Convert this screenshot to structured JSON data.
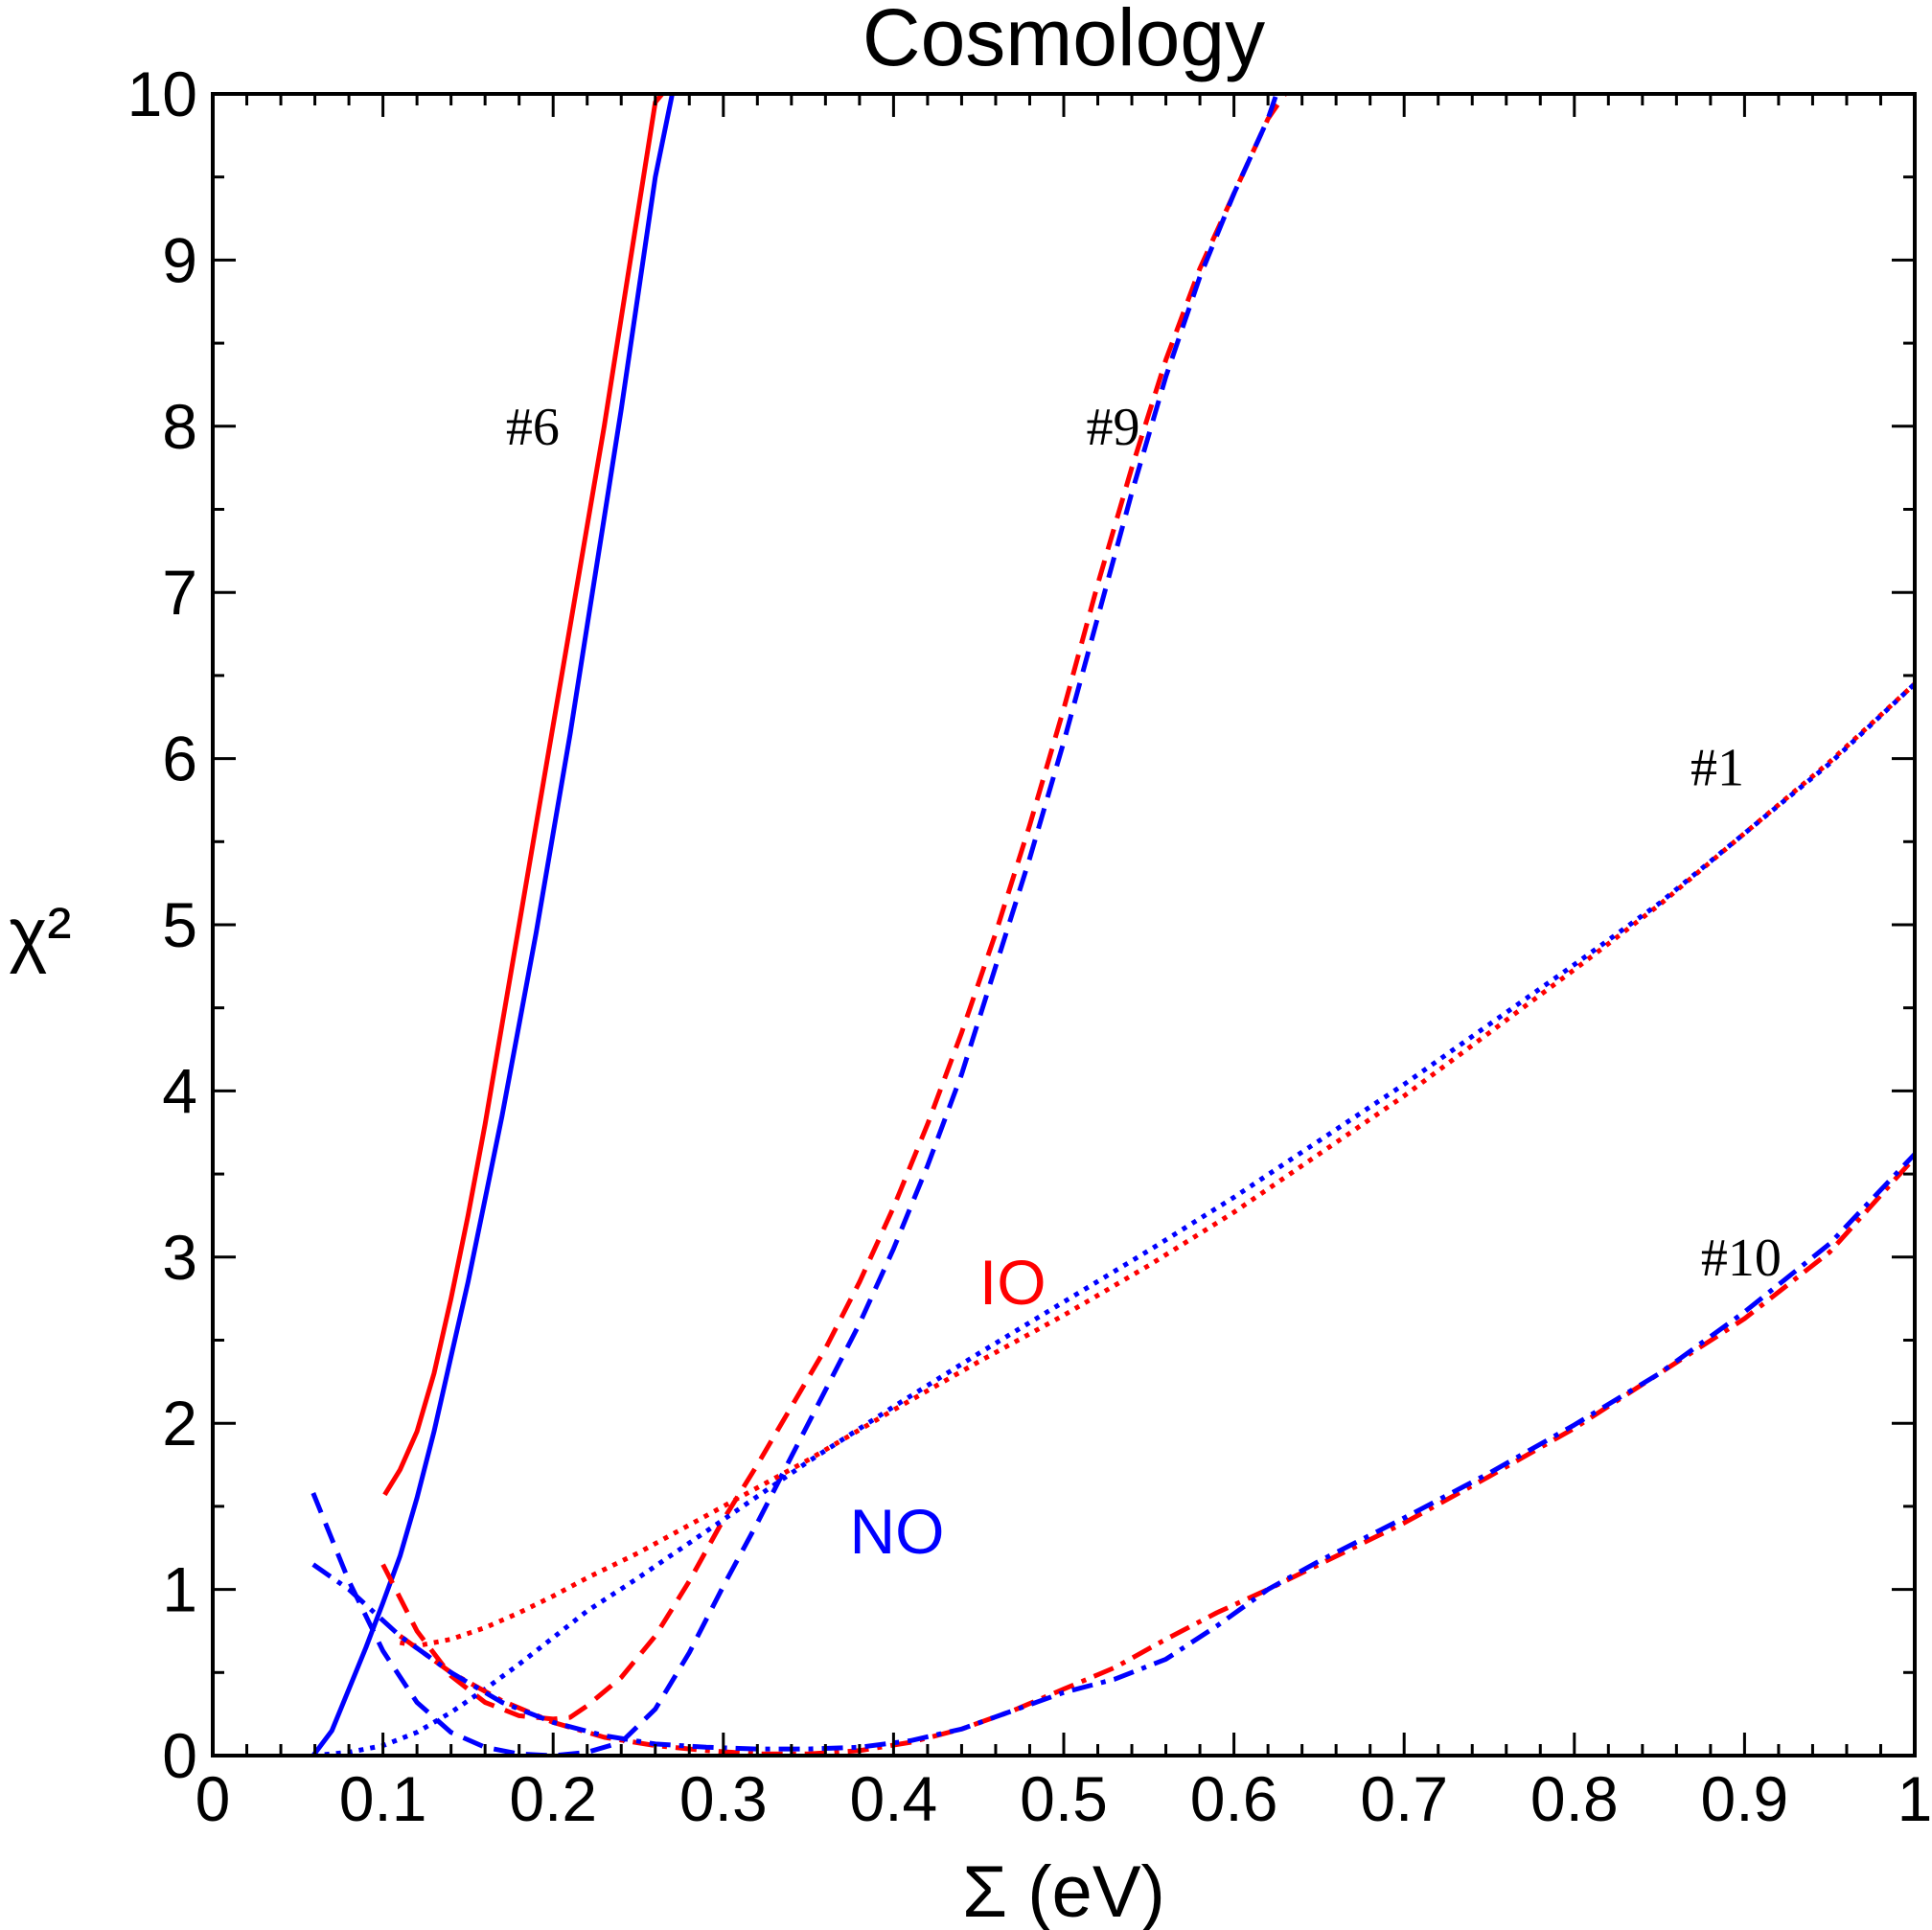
{
  "chart_data": {
    "type": "line",
    "title": "Cosmology",
    "xlabel": "Σ (eV)",
    "ylabel": "χ²",
    "xlim": [
      0,
      1
    ],
    "ylim": [
      0,
      10
    ],
    "x_ticks": [
      "0",
      "0.1",
      "0.2",
      "0.3",
      "0.4",
      "0.5",
      "0.6",
      "0.7",
      "0.8",
      "0.9",
      "1"
    ],
    "y_ticks": [
      "0",
      "1",
      "2",
      "3",
      "4",
      "5",
      "6",
      "7",
      "8",
      "9",
      "10"
    ],
    "grid": false,
    "legend": "none",
    "colors": {
      "NO": "#0000ff",
      "IO": "#ff0000",
      "axes": "#000000"
    },
    "annotations": [
      {
        "text": "#6",
        "x": 0.188,
        "y": 8.0,
        "color": "#000000"
      },
      {
        "text": "#9",
        "x": 0.529,
        "y": 8.0,
        "color": "#000000"
      },
      {
        "text": "#1",
        "x": 0.884,
        "y": 5.95,
        "color": "#000000"
      },
      {
        "text": "#10",
        "x": 0.898,
        "y": 3.0,
        "color": "#000000"
      },
      {
        "text": "IO",
        "x": 0.47,
        "y": 2.85,
        "color": "#ff0000"
      },
      {
        "text": "NO",
        "x": 0.402,
        "y": 1.35,
        "color": "#0000ff"
      }
    ],
    "series": [
      {
        "color": "#ff0000",
        "dash": "solid",
        "x": [
          0.101,
          0.11,
          0.12,
          0.13,
          0.14,
          0.15,
          0.16,
          0.17,
          0.18,
          0.19,
          0.2,
          0.21,
          0.22,
          0.23,
          0.24,
          0.25,
          0.26,
          0.264
        ],
        "y": [
          1.57,
          1.72,
          1.95,
          2.3,
          2.75,
          3.25,
          3.8,
          4.4,
          5.0,
          5.6,
          6.2,
          6.8,
          7.4,
          8.0,
          8.65,
          9.3,
          9.95,
          10.0
        ]
      },
      {
        "color": "#0000ff",
        "dash": "solid",
        "x": [
          0.059,
          0.07,
          0.08,
          0.09,
          0.1,
          0.11,
          0.12,
          0.13,
          0.14,
          0.15,
          0.16,
          0.17,
          0.18,
          0.19,
          0.2,
          0.21,
          0.22,
          0.23,
          0.24,
          0.25,
          0.26,
          0.27
        ],
        "y": [
          0.0,
          0.15,
          0.4,
          0.65,
          0.92,
          1.2,
          1.55,
          1.95,
          2.4,
          2.85,
          3.35,
          3.85,
          4.4,
          4.95,
          5.55,
          6.15,
          6.8,
          7.45,
          8.1,
          8.8,
          9.5,
          10.0
        ]
      },
      {
        "color": "#ff0000",
        "dash": "dashed",
        "x": [
          0.1,
          0.12,
          0.14,
          0.16,
          0.18,
          0.2,
          0.21,
          0.22,
          0.24,
          0.26,
          0.28,
          0.3,
          0.32,
          0.34,
          0.36,
          0.38,
          0.4,
          0.42,
          0.44,
          0.46,
          0.48,
          0.5,
          0.52,
          0.54,
          0.56,
          0.58,
          0.6,
          0.62,
          0.63
        ],
        "y": [
          1.15,
          0.75,
          0.48,
          0.32,
          0.24,
          0.22,
          0.23,
          0.3,
          0.47,
          0.72,
          1.05,
          1.42,
          1.75,
          2.1,
          2.45,
          2.85,
          3.3,
          3.8,
          4.35,
          4.95,
          5.6,
          6.3,
          7.05,
          7.75,
          8.4,
          8.95,
          9.4,
          9.85,
          10.0
        ]
      },
      {
        "color": "#0000ff",
        "dash": "dashed",
        "x": [
          0.059,
          0.08,
          0.1,
          0.12,
          0.14,
          0.16,
          0.18,
          0.2,
          0.22,
          0.24,
          0.26,
          0.28,
          0.3,
          0.32,
          0.34,
          0.36,
          0.38,
          0.4,
          0.42,
          0.44,
          0.46,
          0.48,
          0.5,
          0.52,
          0.54,
          0.56,
          0.58,
          0.6,
          0.62,
          0.625
        ],
        "y": [
          1.58,
          1.05,
          0.63,
          0.32,
          0.14,
          0.05,
          0.01,
          0.0,
          0.02,
          0.08,
          0.28,
          0.62,
          1.02,
          1.4,
          1.8,
          2.2,
          2.6,
          3.05,
          3.55,
          4.1,
          4.75,
          5.4,
          6.1,
          6.85,
          7.6,
          8.3,
          8.9,
          9.4,
          9.85,
          10.0
        ]
      },
      {
        "color": "#ff0000",
        "dash": "dotted",
        "x": [
          0.11,
          0.12,
          0.14,
          0.16,
          0.18,
          0.2,
          0.22,
          0.25,
          0.3,
          0.35,
          0.4,
          0.45,
          0.5,
          0.55,
          0.6,
          0.65,
          0.7,
          0.75,
          0.8,
          0.85,
          0.9,
          0.95,
          1.0
        ],
        "y": [
          0.68,
          0.66,
          0.7,
          0.77,
          0.86,
          0.96,
          1.07,
          1.22,
          1.5,
          1.78,
          2.08,
          2.37,
          2.65,
          2.95,
          3.27,
          3.62,
          3.97,
          4.35,
          4.73,
          5.12,
          5.55,
          5.98,
          6.45
        ]
      },
      {
        "color": "#0000ff",
        "dash": "dotted",
        "x": [
          0.059,
          0.08,
          0.1,
          0.12,
          0.14,
          0.16,
          0.18,
          0.2,
          0.22,
          0.25,
          0.3,
          0.35,
          0.4,
          0.45,
          0.5,
          0.55,
          0.6,
          0.65,
          0.7,
          0.75,
          0.8,
          0.85,
          0.9,
          0.95,
          1.0
        ],
        "y": [
          0.0,
          0.02,
          0.06,
          0.14,
          0.26,
          0.4,
          0.55,
          0.71,
          0.87,
          1.07,
          1.42,
          1.77,
          2.1,
          2.42,
          2.73,
          3.04,
          3.36,
          3.7,
          4.04,
          4.4,
          4.76,
          5.13,
          5.55,
          5.97,
          6.45
        ]
      },
      {
        "color": "#ff0000",
        "dash": "dashdot",
        "x": [
          0.11,
          0.14,
          0.17,
          0.2,
          0.23,
          0.26,
          0.29,
          0.32,
          0.35,
          0.38,
          0.41,
          0.44,
          0.47,
          0.5,
          0.53,
          0.56,
          0.59,
          0.62,
          0.65,
          0.7,
          0.75,
          0.8,
          0.85,
          0.9,
          0.95,
          1.0
        ],
        "y": [
          0.72,
          0.5,
          0.33,
          0.2,
          0.11,
          0.06,
          0.03,
          0.01,
          0.01,
          0.03,
          0.08,
          0.16,
          0.27,
          0.4,
          0.53,
          0.7,
          0.86,
          1.0,
          1.15,
          1.4,
          1.68,
          1.97,
          2.3,
          2.63,
          3.03,
          3.6
        ]
      },
      {
        "color": "#0000ff",
        "dash": "dashdot",
        "x": [
          0.059,
          0.08,
          0.11,
          0.14,
          0.17,
          0.2,
          0.23,
          0.26,
          0.29,
          0.32,
          0.35,
          0.38,
          0.41,
          0.44,
          0.47,
          0.5,
          0.53,
          0.56,
          0.59,
          0.62,
          0.65,
          0.7,
          0.75,
          0.8,
          0.85,
          0.9,
          0.95,
          1.0
        ],
        "y": [
          1.15,
          1.0,
          0.72,
          0.5,
          0.32,
          0.2,
          0.12,
          0.07,
          0.05,
          0.04,
          0.04,
          0.05,
          0.09,
          0.16,
          0.27,
          0.38,
          0.46,
          0.58,
          0.78,
          1.0,
          1.17,
          1.43,
          1.7,
          1.99,
          2.3,
          2.67,
          3.08,
          3.62
        ]
      }
    ]
  }
}
